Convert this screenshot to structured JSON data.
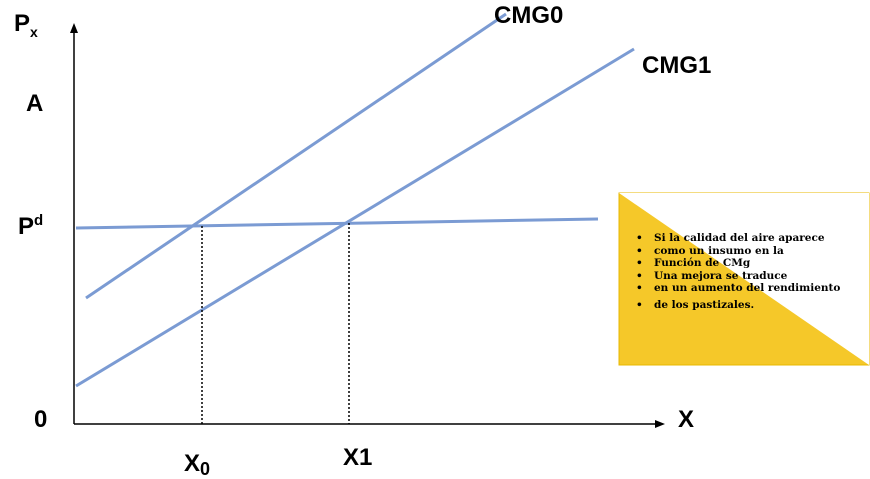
{
  "axes": {
    "y_label_main": "P",
    "y_label_sub": "x",
    "x_label": "X",
    "origin_label": "0",
    "y_mark_a": "A",
    "y_mark_pd_main": "P",
    "y_mark_pd_sup": "d",
    "x_mark_0_main": "X",
    "x_mark_0_sub": "0",
    "x_mark_1": "X1"
  },
  "curves": {
    "cmg0_label": "CMG0",
    "cmg1_label": "CMG1"
  },
  "note": {
    "items": [
      "Si la calidad del aire aparece",
      "como un insumo en la",
      "Función de CMg",
      "Una mejora se traduce",
      "en un aumento del rendimiento",
      "de los pastizales."
    ]
  },
  "colors": {
    "line": "#7b9bd3",
    "note_fill": "#f5c829",
    "note_border": "#e8b800",
    "axis": "#000000"
  }
}
